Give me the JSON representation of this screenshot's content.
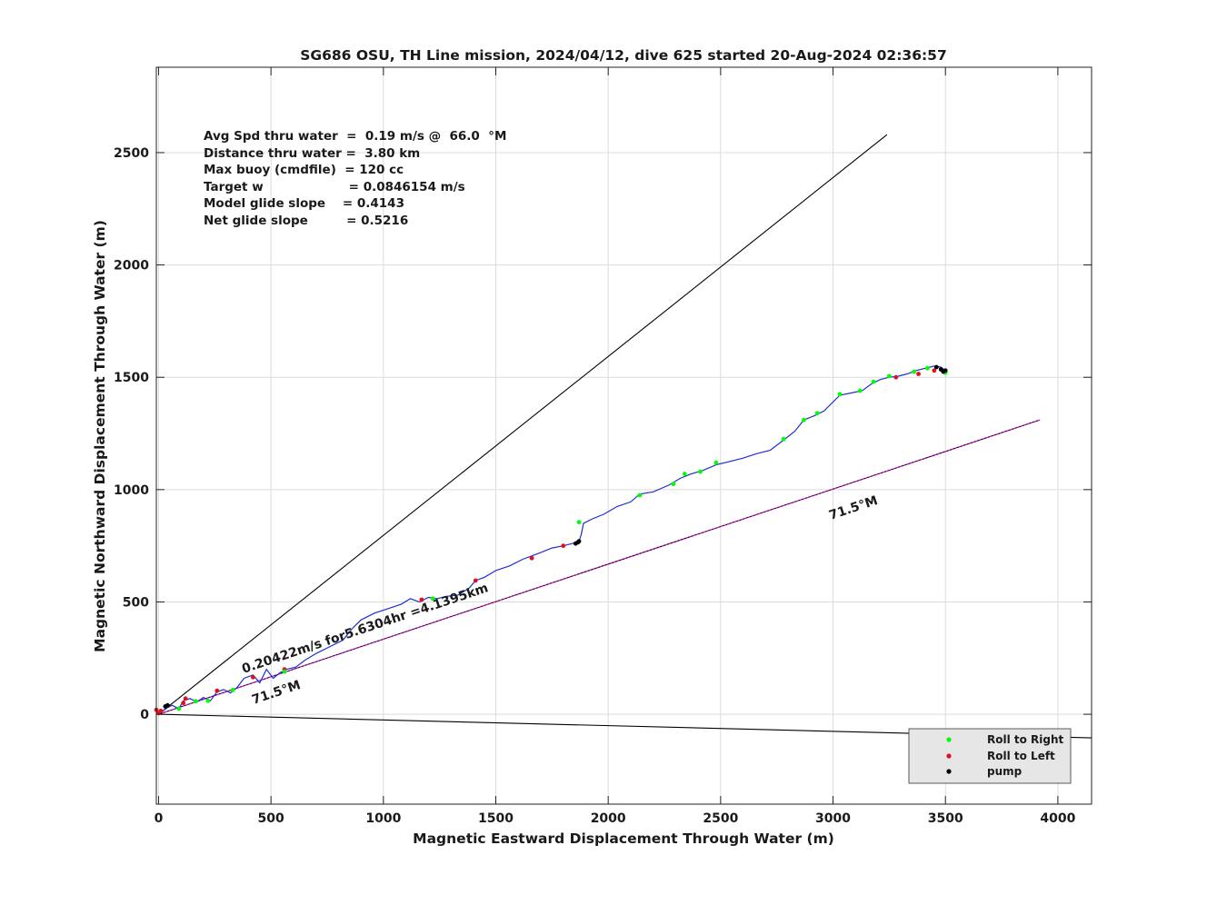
{
  "chart_data": {
    "type": "scatter",
    "title": "SG686 OSU, TH Line mission, 2024/04/12, dive 625 started 20-Aug-2024 02:36:57",
    "xlabel": "Magnetic Eastward Displacement Through Water (m)",
    "ylabel": "Magnetic Northward Displacement Through Water (m)",
    "xlim": [
      -10,
      4150
    ],
    "ylim": [
      -400,
      2880
    ],
    "xticks": [
      0,
      500,
      1000,
      1500,
      2000,
      2500,
      3000,
      3500,
      4000
    ],
    "yticks": [
      0,
      500,
      1000,
      1500,
      2000,
      2500
    ],
    "grid": true,
    "legend_position": "bottom-right",
    "stats": [
      "Avg Spd thru water  =  0.19 m/s @  66.0  °M",
      "Distance thru water =  3.80 km",
      "Max buoy (cmdfile)  = 120 cc",
      "Target w                    = 0.0846154 m/s",
      "Model glide slope    = 0.4143",
      "Net glide slope         = 0.5216"
    ],
    "annotations": {
      "current": "0.20422m/s for5.6304hr =4.1395km",
      "heading_near": "71.5°M",
      "heading_far": "71.5°M"
    },
    "reference_lines": [
      {
        "name": "glide envelope upper",
        "x": [
          0,
          3240
        ],
        "y": [
          0,
          2580
        ],
        "color": "#000000"
      },
      {
        "name": "heading 71.5",
        "x": [
          0,
          3920
        ],
        "y": [
          0,
          1310
        ],
        "color": "#000000"
      },
      {
        "name": "heading 71.5 magenta",
        "x": [
          0,
          3920
        ],
        "y": [
          0,
          1310
        ],
        "color": "#ff00ff"
      },
      {
        "name": "current set",
        "x": [
          0,
          4150
        ],
        "y": [
          0,
          -105
        ],
        "color": "#000000"
      }
    ],
    "track": {
      "color": "#1f2fd0",
      "x": [
        0,
        20,
        40,
        60,
        90,
        110,
        140,
        170,
        200,
        230,
        260,
        290,
        320,
        350,
        380,
        420,
        450,
        480,
        510,
        540,
        570,
        610,
        650,
        700,
        760,
        820,
        860,
        900,
        960,
        1020,
        1080,
        1120,
        1160,
        1200,
        1240,
        1280,
        1330,
        1380,
        1410,
        1450,
        1500,
        1560,
        1620,
        1660,
        1700,
        1750,
        1800,
        1840,
        1870,
        1880,
        1890,
        1930,
        1980,
        2040,
        2100,
        2140,
        2200,
        2270,
        2320,
        2370,
        2420,
        2480,
        2540,
        2600,
        2660,
        2720,
        2780,
        2830,
        2870,
        2920,
        2960,
        3000,
        3030,
        3080,
        3130,
        3170,
        3210,
        3250,
        3290,
        3330,
        3370,
        3410,
        3450,
        3480,
        3500
      ],
      "y": [
        0,
        15,
        30,
        40,
        25,
        60,
        70,
        55,
        75,
        60,
        100,
        110,
        95,
        120,
        160,
        175,
        140,
        200,
        160,
        185,
        200,
        210,
        240,
        270,
        300,
        330,
        380,
        420,
        450,
        470,
        490,
        515,
        500,
        520,
        515,
        525,
        530,
        560,
        595,
        610,
        640,
        660,
        690,
        705,
        720,
        740,
        750,
        760,
        770,
        800,
        850,
        870,
        890,
        925,
        945,
        980,
        990,
        1020,
        1050,
        1070,
        1085,
        1110,
        1125,
        1140,
        1160,
        1175,
        1220,
        1260,
        1310,
        1330,
        1350,
        1390,
        1420,
        1430,
        1440,
        1470,
        1490,
        1500,
        1505,
        1515,
        1530,
        1540,
        1550,
        1545,
        1530
      ]
    },
    "roll_right": {
      "color": "#00ff00",
      "x": [
        90,
        165,
        220,
        330,
        560,
        1220,
        1870,
        2140,
        2290,
        2340,
        2410,
        2480,
        2780,
        2870,
        2930,
        3030,
        3120,
        3180,
        3250,
        3360,
        3420,
        3500
      ],
      "y": [
        25,
        58,
        60,
        108,
        190,
        515,
        855,
        975,
        1025,
        1070,
        1080,
        1120,
        1225,
        1310,
        1340,
        1425,
        1440,
        1480,
        1505,
        1525,
        1540,
        1520
      ]
    },
    "roll_left": {
      "color": "#e01020",
      "x": [
        -10,
        0,
        10,
        110,
        120,
        260,
        420,
        560,
        1170,
        1410,
        1660,
        1800,
        3280,
        3380,
        3450
      ],
      "y": [
        20,
        5,
        15,
        50,
        70,
        105,
        165,
        200,
        510,
        595,
        695,
        750,
        1500,
        1515,
        1530
      ]
    },
    "pump": {
      "color": "#000000",
      "x": [
        30,
        40,
        1855,
        1865,
        1870,
        3460,
        3480,
        3490,
        3500
      ],
      "y": [
        35,
        40,
        760,
        765,
        770,
        1545,
        1535,
        1525,
        1530
      ]
    },
    "legend": [
      "Roll to Right",
      "Roll to Left",
      "pump"
    ]
  }
}
